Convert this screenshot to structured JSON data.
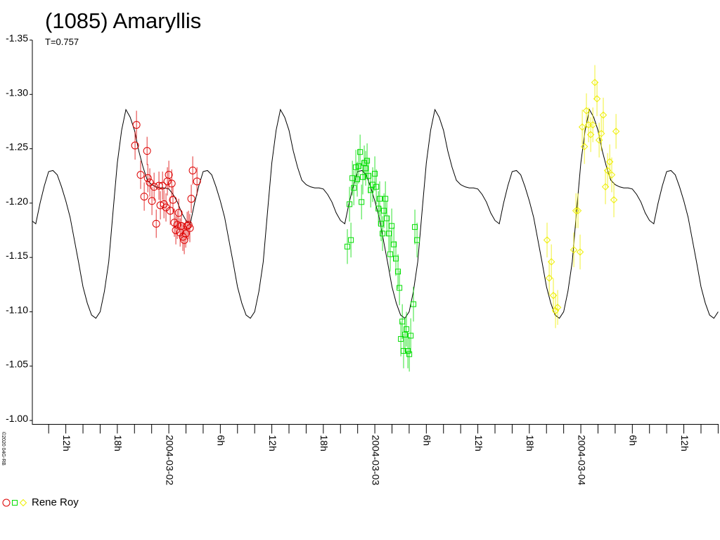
{
  "chart_data": {
    "type": "lightcurve",
    "title": "(1085) Amaryllis",
    "subtitle": "T=0.757",
    "credit": "©2020 04G-RB",
    "observer": "Rene Roy",
    "ylim": [
      -1.0,
      -1.35
    ],
    "yticks": [
      -1.35,
      {
        "value": -1.3,
        "label": "-1.30"
      },
      -1.25,
      {
        "value": -1.2,
        "label": "-1.20"
      },
      -1.15,
      {
        "value": -1.1,
        "label": "-1.10"
      },
      -1.05,
      {
        "value": -1.0,
        "label": "-1.00"
      }
    ],
    "xlim": [
      "2004-03-01T08:06",
      "2004-03-04T16:03"
    ],
    "xticks": [
      {
        "value": "2004-03-01T10:00",
        "label": null
      },
      {
        "value": "2004-03-01T12:00",
        "label": "12h"
      },
      {
        "value": "2004-03-01T14:00",
        "label": null
      },
      {
        "value": "2004-03-01T16:00",
        "label": null
      },
      {
        "value": "2004-03-01T18:00",
        "label": "18h"
      },
      {
        "value": "2004-03-01T20:00",
        "label": null
      },
      {
        "value": "2004-03-01T22:00",
        "label": null
      },
      {
        "value": "2004-03-02T00:00",
        "label": "2004-03-02"
      },
      {
        "value": "2004-03-02T02:00",
        "label": null
      },
      {
        "value": "2004-03-02T04:00",
        "label": null
      },
      {
        "value": "2004-03-02T06:00",
        "label": "6h"
      },
      {
        "value": "2004-03-02T08:00",
        "label": null
      },
      {
        "value": "2004-03-02T10:00",
        "label": null
      },
      {
        "value": "2004-03-02T12:00",
        "label": "12h"
      },
      {
        "value": "2004-03-02T14:00",
        "label": null
      },
      {
        "value": "2004-03-02T16:00",
        "label": null
      },
      {
        "value": "2004-03-02T18:00",
        "label": "18h"
      },
      {
        "value": "2004-03-02T20:00",
        "label": null
      },
      {
        "value": "2004-03-02T22:00",
        "label": null
      },
      {
        "value": "2004-03-03T00:00",
        "label": "2004-03-03"
      },
      {
        "value": "2004-03-03T02:00",
        "label": null
      },
      {
        "value": "2004-03-03T04:00",
        "label": null
      },
      {
        "value": "2004-03-03T06:00",
        "label": "6h"
      },
      {
        "value": "2004-03-03T08:00",
        "label": null
      },
      {
        "value": "2004-03-03T10:00",
        "label": null
      },
      {
        "value": "2004-03-03T12:00",
        "label": "12h"
      },
      {
        "value": "2004-03-03T14:00",
        "label": null
      },
      {
        "value": "2004-03-03T16:00",
        "label": null
      },
      {
        "value": "2004-03-03T18:00",
        "label": "18h"
      },
      {
        "value": "2004-03-03T20:00",
        "label": null
      },
      {
        "value": "2004-03-03T22:00",
        "label": null
      },
      {
        "value": "2004-03-04T00:00",
        "label": "2004-03-04"
      },
      {
        "value": "2004-03-04T02:00",
        "label": null
      },
      {
        "value": "2004-03-04T04:00",
        "label": null
      },
      {
        "value": "2004-03-04T06:00",
        "label": "6h"
      },
      {
        "value": "2004-03-04T08:00",
        "label": null
      },
      {
        "value": "2004-03-04T10:00",
        "label": null
      },
      {
        "value": "2004-03-04T12:00",
        "label": "12h"
      },
      {
        "value": "2004-03-04T14:00",
        "label": null
      },
      {
        "value": "2004-03-04T16:00",
        "label": null
      }
    ],
    "model": {
      "color": "#000000",
      "x": [
        "2004-03-01T08:00",
        "2004-03-01T08:30",
        "2004-03-01T09:00",
        "2004-03-01T09:30",
        "2004-03-01T10:00",
        "2004-03-01T10:30",
        "2004-03-01T11:00",
        "2004-03-01T11:30",
        "2004-03-01T12:00",
        "2004-03-01T12:30",
        "2004-03-01T13:00",
        "2004-03-01T13:30",
        "2004-03-01T14:00",
        "2004-03-01T14:30",
        "2004-03-01T15:00",
        "2004-03-01T15:30",
        "2004-03-01T16:00",
        "2004-03-01T16:30",
        "2004-03-01T17:00",
        "2004-03-01T17:30",
        "2004-03-01T18:00",
        "2004-03-01T18:30",
        "2004-03-01T19:00",
        "2004-03-01T19:30",
        "2004-03-01T20:00",
        "2004-03-01T20:30",
        "2004-03-01T21:00",
        "2004-03-01T21:30",
        "2004-03-01T22:00",
        "2004-03-01T22:30",
        "2004-03-01T23:00",
        "2004-03-01T23:30",
        "2004-03-02T00:00",
        "2004-03-02T00:30",
        "2004-03-02T01:00",
        "2004-03-02T01:30",
        "2004-03-02T02:00",
        "2004-03-02T02:30",
        "2004-03-02T03:00",
        "2004-03-02T03:30",
        "2004-03-02T04:00",
        "2004-03-02T04:30",
        "2004-03-02T05:00",
        "2004-03-02T05:30",
        "2004-03-02T06:00",
        "2004-03-02T06:30",
        "2004-03-02T07:00",
        "2004-03-02T07:30",
        "2004-03-02T08:00",
        "2004-03-02T08:30",
        "2004-03-02T09:00",
        "2004-03-02T09:30",
        "2004-03-02T10:00",
        "2004-03-02T10:30",
        "2004-03-02T11:00",
        "2004-03-02T11:30",
        "2004-03-02T12:00",
        "2004-03-02T12:30",
        "2004-03-02T13:00",
        "2004-03-02T13:30",
        "2004-03-02T14:00",
        "2004-03-02T14:30",
        "2004-03-02T15:00",
        "2004-03-02T15:30",
        "2004-03-02T16:00",
        "2004-03-02T16:30",
        "2004-03-02T17:00",
        "2004-03-02T17:30",
        "2004-03-02T18:00",
        "2004-03-02T18:30",
        "2004-03-02T19:00",
        "2004-03-02T19:30",
        "2004-03-02T20:00",
        "2004-03-02T20:30",
        "2004-03-02T21:00",
        "2004-03-02T21:30",
        "2004-03-02T22:00",
        "2004-03-02T22:30",
        "2004-03-02T23:00",
        "2004-03-02T23:30",
        "2004-03-03T00:00",
        "2004-03-03T00:30",
        "2004-03-03T01:00",
        "2004-03-03T01:30",
        "2004-03-03T02:00",
        "2004-03-03T02:30",
        "2004-03-03T03:00",
        "2004-03-03T03:30",
        "2004-03-03T04:00",
        "2004-03-03T04:30",
        "2004-03-03T05:00",
        "2004-03-03T05:30",
        "2004-03-03T06:00",
        "2004-03-03T06:30",
        "2004-03-03T07:00",
        "2004-03-03T07:30",
        "2004-03-03T08:00",
        "2004-03-03T08:30",
        "2004-03-03T09:00",
        "2004-03-03T09:30",
        "2004-03-03T10:00",
        "2004-03-03T10:30",
        "2004-03-03T11:00",
        "2004-03-03T11:30",
        "2004-03-03T12:00",
        "2004-03-03T12:30",
        "2004-03-03T13:00",
        "2004-03-03T13:30",
        "2004-03-03T14:00",
        "2004-03-03T14:30",
        "2004-03-03T15:00",
        "2004-03-03T15:30",
        "2004-03-03T16:00",
        "2004-03-03T16:30",
        "2004-03-03T17:00",
        "2004-03-03T17:30",
        "2004-03-03T18:00",
        "2004-03-03T18:30",
        "2004-03-03T19:00",
        "2004-03-03T19:30",
        "2004-03-03T20:00",
        "2004-03-03T20:30",
        "2004-03-03T21:00",
        "2004-03-03T21:30",
        "2004-03-03T22:00",
        "2004-03-03T22:30",
        "2004-03-03T23:00",
        "2004-03-03T23:30",
        "2004-03-04T00:00",
        "2004-03-04T00:30",
        "2004-03-04T01:00",
        "2004-03-04T01:30",
        "2004-03-04T02:00",
        "2004-03-04T02:30",
        "2004-03-04T03:00",
        "2004-03-04T03:30",
        "2004-03-04T04:00",
        "2004-03-04T04:30",
        "2004-03-04T05:00",
        "2004-03-04T05:30",
        "2004-03-04T06:00",
        "2004-03-04T06:30",
        "2004-03-04T07:00",
        "2004-03-04T07:30",
        "2004-03-04T08:00",
        "2004-03-04T08:30",
        "2004-03-04T09:00",
        "2004-03-04T09:30",
        "2004-03-04T10:00",
        "2004-03-04T10:30",
        "2004-03-04T11:00",
        "2004-03-04T11:30",
        "2004-03-04T12:00",
        "2004-03-04T12:30",
        "2004-03-04T13:00",
        "2004-03-04T13:30",
        "2004-03-04T14:00",
        "2004-03-04T14:30",
        "2004-03-04T15:00",
        "2004-03-04T15:30",
        "2004-03-04T16:00"
      ],
      "values": [
        -1.184,
        -1.181,
        -1.2,
        -1.216,
        -1.229,
        -1.23,
        -1.226,
        -1.215,
        -1.202,
        -1.187,
        -1.166,
        -1.145,
        -1.123,
        -1.108,
        -1.097,
        -1.094,
        -1.1,
        -1.119,
        -1.146,
        -1.192,
        -1.237,
        -1.267,
        -1.286,
        -1.279,
        -1.267,
        -1.248,
        -1.233,
        -1.221,
        -1.217,
        -1.215,
        -1.214,
        -1.214,
        -1.213,
        -1.208,
        -1.201,
        -1.191,
        -1.184,
        -1.181,
        -1.2,
        -1.216,
        -1.229,
        -1.23,
        -1.226,
        -1.215,
        -1.202,
        -1.187,
        -1.166,
        -1.145,
        -1.123,
        -1.108,
        -1.097,
        -1.094,
        -1.1,
        -1.119,
        -1.146,
        -1.192,
        -1.237,
        -1.267,
        -1.286,
        -1.279,
        -1.267,
        -1.248,
        -1.233,
        -1.221,
        -1.217,
        -1.215,
        -1.214,
        -1.214,
        -1.213,
        -1.208,
        -1.201,
        -1.191,
        -1.184,
        -1.181,
        -1.2,
        -1.216,
        -1.229,
        -1.23,
        -1.226,
        -1.215,
        -1.202,
        -1.187,
        -1.166,
        -1.145,
        -1.123,
        -1.108,
        -1.097,
        -1.094,
        -1.1,
        -1.119,
        -1.146,
        -1.192,
        -1.237,
        -1.267,
        -1.286,
        -1.279,
        -1.267,
        -1.248,
        -1.233,
        -1.221,
        -1.217,
        -1.215,
        -1.214,
        -1.214,
        -1.213,
        -1.208,
        -1.201,
        -1.191,
        -1.184,
        -1.181,
        -1.2,
        -1.216,
        -1.229,
        -1.23,
        -1.226,
        -1.215,
        -1.202,
        -1.187,
        -1.166,
        -1.145,
        -1.123,
        -1.108,
        -1.097,
        -1.094,
        -1.1,
        -1.119,
        -1.146,
        -1.192,
        -1.237,
        -1.267,
        -1.286,
        -1.279,
        -1.267,
        -1.248,
        -1.233,
        -1.221,
        -1.217,
        -1.215,
        -1.214,
        -1.214,
        -1.213,
        -1.208,
        -1.201,
        -1.191,
        -1.184,
        -1.181,
        -1.2,
        -1.216,
        -1.229,
        -1.23,
        -1.226,
        -1.215,
        -1.202,
        -1.187,
        -1.166,
        -1.145,
        -1.123,
        -1.108,
        -1.097,
        -1.094,
        -1.1
      ]
    },
    "series": [
      {
        "color": "#dd0000",
        "marker": "circle",
        "error": 0.013,
        "x": [
          "2004-03-01T20:04",
          "2004-03-01T20:14",
          "2004-03-01T20:43",
          "2004-03-01T21:08",
          "2004-03-01T21:28",
          "2004-03-01T21:33",
          "2004-03-01T21:47",
          "2004-03-01T22:02",
          "2004-03-01T22:17",
          "2004-03-01T22:32",
          "2004-03-01T22:51",
          "2004-03-01T23:01",
          "2004-03-01T23:16",
          "2004-03-01T23:26",
          "2004-03-01T23:40",
          "2004-03-01T23:50",
          "2004-03-02T00:00",
          "2004-03-02T00:10",
          "2004-03-02T00:20",
          "2004-03-02T00:29",
          "2004-03-02T00:39",
          "2004-03-02T00:49",
          "2004-03-02T00:59",
          "2004-03-02T01:09",
          "2004-03-02T01:19",
          "2004-03-02T01:28",
          "2004-03-02T01:38",
          "2004-03-02T01:48",
          "2004-03-02T01:58",
          "2004-03-02T02:08",
          "2004-03-02T02:18",
          "2004-03-02T02:27",
          "2004-03-02T02:37",
          "2004-03-02T02:47",
          "2004-03-02T03:17"
        ],
        "values": [
          -1.253,
          -1.272,
          -1.226,
          -1.206,
          -1.248,
          -1.223,
          -1.219,
          -1.202,
          -1.215,
          -1.181,
          -1.216,
          -1.198,
          -1.216,
          -1.199,
          -1.196,
          -1.22,
          -1.226,
          -1.193,
          -1.218,
          -1.203,
          -1.182,
          -1.175,
          -1.18,
          -1.191,
          -1.173,
          -1.179,
          -1.169,
          -1.166,
          -1.172,
          -1.179,
          -1.18,
          -1.177,
          -1.204,
          -1.23,
          -1.22
        ]
      },
      {
        "color": "#00dd00",
        "marker": "square",
        "error": 0.016,
        "x": [
          "2004-03-02T20:48",
          "2004-03-02T21:03",
          "2004-03-02T21:13",
          "2004-03-02T21:23",
          "2004-03-02T21:33",
          "2004-03-02T21:47",
          "2004-03-02T21:57",
          "2004-03-02T22:07",
          "2004-03-02T22:17",
          "2004-03-02T22:27",
          "2004-03-02T22:36",
          "2004-03-02T22:46",
          "2004-03-02T22:56",
          "2004-03-02T23:06",
          "2004-03-02T23:16",
          "2004-03-02T23:31",
          "2004-03-02T23:45",
          "2004-03-03T00:00",
          "2004-03-03T00:10",
          "2004-03-03T00:25",
          "2004-03-03T00:34",
          "2004-03-03T00:44",
          "2004-03-03T00:54",
          "2004-03-03T01:04",
          "2004-03-03T01:14",
          "2004-03-03T01:24",
          "2004-03-03T01:38",
          "2004-03-03T01:48",
          "2004-03-03T01:58",
          "2004-03-03T02:13",
          "2004-03-03T02:27",
          "2004-03-03T02:42",
          "2004-03-03T02:52",
          "2004-03-03T03:02",
          "2004-03-03T03:12",
          "2004-03-03T03:21",
          "2004-03-03T03:31",
          "2004-03-03T03:41",
          "2004-03-03T03:51",
          "2004-03-03T04:01",
          "2004-03-03T04:11",
          "2004-03-03T04:30",
          "2004-03-03T04:40",
          "2004-03-03T04:55"
        ],
        "values": [
          -1.16,
          -1.199,
          -1.166,
          -1.223,
          -1.214,
          -1.233,
          -1.222,
          -1.234,
          -1.247,
          -1.201,
          -1.224,
          -1.237,
          -1.232,
          -1.239,
          -1.225,
          -1.212,
          -1.217,
          -1.227,
          -1.215,
          -1.195,
          -1.204,
          -1.181,
          -1.172,
          -1.193,
          -1.204,
          -1.186,
          -1.172,
          -1.153,
          -1.179,
          -1.162,
          -1.149,
          -1.137,
          -1.122,
          -1.075,
          -1.091,
          -1.064,
          -1.079,
          -1.084,
          -1.064,
          -1.061,
          -1.078,
          -1.107,
          -1.178,
          -1.166
        ]
      },
      {
        "color": "#eeee00",
        "marker": "diamond",
        "error": 0.016,
        "x": [
          "2004-03-03T20:04",
          "2004-03-03T20:19",
          "2004-03-03T20:34",
          "2004-03-03T20:48",
          "2004-03-03T21:03",
          "2004-03-03T21:18",
          "2004-03-03T23:11",
          "2004-03-03T23:26",
          "2004-03-03T23:40",
          "2004-03-03T23:55",
          "2004-03-04T00:10",
          "2004-03-04T00:25",
          "2004-03-04T00:39",
          "2004-03-04T00:54",
          "2004-03-04T01:09",
          "2004-03-04T01:24",
          "2004-03-04T01:38",
          "2004-03-04T01:53",
          "2004-03-04T02:08",
          "2004-03-04T02:23",
          "2004-03-04T02:37",
          "2004-03-04T02:52",
          "2004-03-04T03:07",
          "2004-03-04T03:22",
          "2004-03-04T03:36",
          "2004-03-04T03:51",
          "2004-03-04T04:06"
        ],
        "values": [
          -1.166,
          -1.131,
          -1.146,
          -1.115,
          -1.101,
          -1.104,
          -1.157,
          -1.193,
          -1.193,
          -1.155,
          -1.27,
          -1.252,
          -1.285,
          -1.272,
          -1.263,
          -1.272,
          -1.311,
          -1.296,
          -1.258,
          -1.264,
          -1.281,
          -1.215,
          -1.23,
          -1.238,
          -1.226,
          -1.203,
          -1.266
        ]
      }
    ]
  }
}
